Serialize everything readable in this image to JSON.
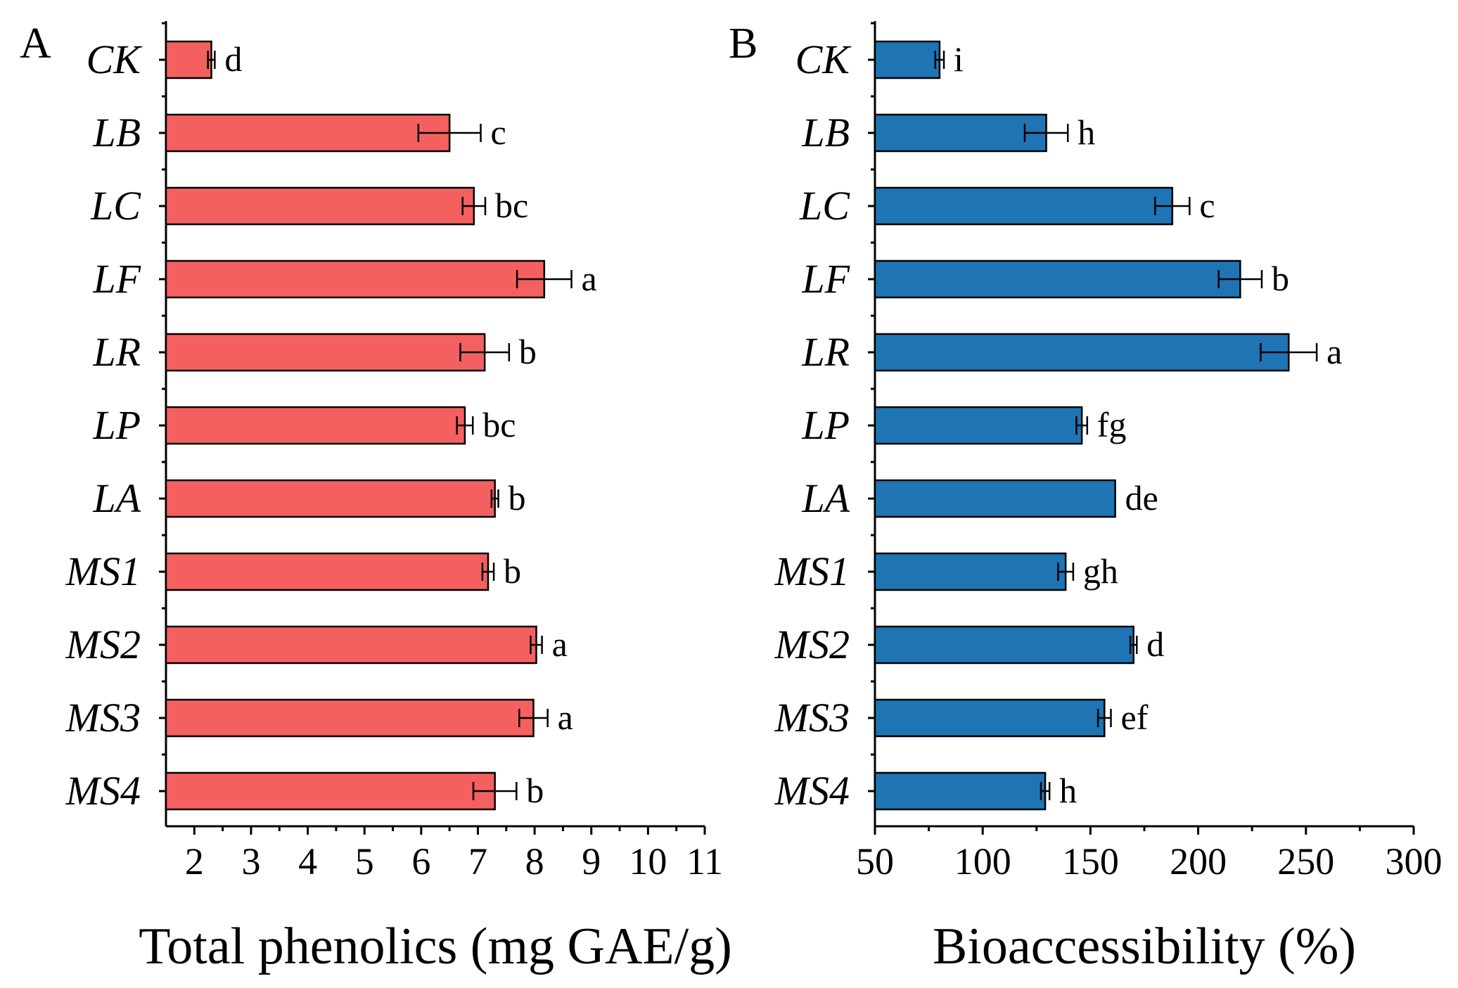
{
  "chart_data": [
    {
      "type": "bar",
      "orientation": "horizontal",
      "panel": "A",
      "xlabel": "Total phenolics (mg GAE/g)",
      "ylabel": "",
      "xlim": [
        1.5,
        11
      ],
      "ticks": [
        2,
        3,
        4,
        5,
        6,
        7,
        8,
        9,
        10,
        11
      ],
      "color": "#f46060",
      "categories": [
        "CK",
        "LB",
        "LC",
        "LF",
        "LR",
        "LP",
        "LA",
        "MS1",
        "MS2",
        "MS3",
        "MS4"
      ],
      "values": [
        2.3,
        6.5,
        6.93,
        8.17,
        7.12,
        6.77,
        7.3,
        7.18,
        8.03,
        7.98,
        7.3
      ],
      "errors": [
        0.06,
        0.55,
        0.2,
        0.48,
        0.43,
        0.14,
        0.06,
        0.1,
        0.1,
        0.25,
        0.38
      ],
      "significance": [
        "d",
        "c",
        "bc",
        "a",
        "b",
        "bc",
        "b",
        "b",
        "a",
        "a",
        "b"
      ]
    },
    {
      "type": "bar",
      "orientation": "horizontal",
      "panel": "B",
      "xlabel": "Bioaccessibility (%)",
      "ylabel": "",
      "xlim": [
        50,
        300
      ],
      "ticks": [
        50,
        100,
        150,
        200,
        250,
        300
      ],
      "color": "#1f74b4",
      "categories": [
        "CK",
        "LB",
        "LC",
        "LF",
        "LR",
        "LP",
        "LA",
        "MS1",
        "MS2",
        "MS3",
        "MS4"
      ],
      "values": [
        80,
        129.5,
        188,
        219.5,
        242,
        146,
        161.5,
        138.5,
        170,
        156.5,
        129
      ],
      "errors": [
        2,
        10,
        8,
        10,
        13,
        2.5,
        0,
        3.5,
        1.5,
        3,
        2
      ],
      "significance": [
        "i",
        "h",
        "c",
        "b",
        "a",
        "fg",
        "de",
        "gh",
        "d",
        "ef",
        "h"
      ]
    }
  ]
}
